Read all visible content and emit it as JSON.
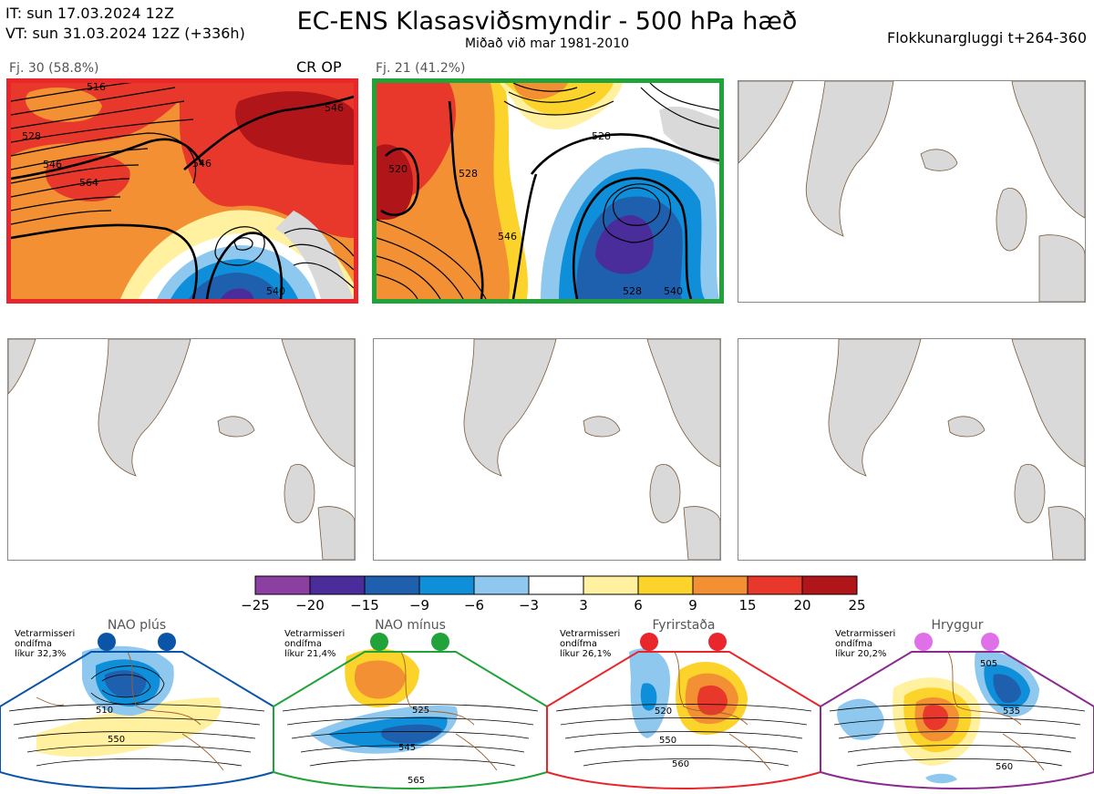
{
  "header": {
    "it_line": "IT: sun 17.03.2024 12Z",
    "vt_line": "VT: sun 31.03.2024 12Z  (+336h)",
    "title": "EC-ENS Klasasviðsmyndir - 500 hPa hæð",
    "subtitle": "Miðað við mar 1981-2010",
    "window": "Flokkunargluggi t+264-360"
  },
  "panels": [
    {
      "label": "Fj. 30 (58.8%)",
      "tag": "CR OP",
      "border_color": "#e8262b",
      "contour_labels": [
        "516",
        "528",
        "546",
        "546",
        "564",
        "546",
        "540"
      ]
    },
    {
      "label": "Fj. 21 (41.2%)",
      "tag": "",
      "border_color": "#21a33a",
      "contour_labels": [
        "528",
        "520",
        "528",
        "546",
        "540",
        "528"
      ]
    },
    {
      "label": "",
      "tag": "",
      "border_color": "#888888"
    },
    {
      "label": "",
      "tag": "",
      "border_color": "#888888"
    },
    {
      "label": "",
      "tag": "",
      "border_color": "#888888"
    },
    {
      "label": "",
      "tag": "",
      "border_color": "#888888"
    }
  ],
  "colorbar": {
    "ticks": [
      "−25",
      "−20",
      "−15",
      "−9",
      "−6",
      "−3",
      "3",
      "6",
      "9",
      "15",
      "20",
      "25"
    ],
    "colors": [
      "#8b3fa0",
      "#4a2c9b",
      "#1e5fae",
      "#0f8fd9",
      "#8fc8ee",
      "#ffffff",
      "#fff1a0",
      "#fcd32a",
      "#f39033",
      "#e8382b",
      "#b0151a"
    ]
  },
  "regimes": [
    {
      "title": "NAO plús",
      "note": [
        "Vetrarmisseri",
        "ondífma",
        "líkur 32,3%"
      ],
      "color": "#0a55a8",
      "dot_color": "#0a55a8",
      "contours": [
        "510",
        "550"
      ]
    },
    {
      "title": "NAO mínus",
      "note": [
        "Vetrarmisseri",
        "ondífma",
        "líkur 21,4%"
      ],
      "color": "#21a33a",
      "dot_color": "#21a33a",
      "contours": [
        "525",
        "545",
        "565"
      ]
    },
    {
      "title": "Fyrirstaða",
      "note": [
        "Vetrarmisseri",
        "ondífma",
        "líkur 26,1%"
      ],
      "color": "#e8262b",
      "dot_color": "#e8262b",
      "contours": [
        "520",
        "550",
        "560"
      ]
    },
    {
      "title": "Hryggur",
      "note": [
        "Vetrarmisseri",
        "ondífma",
        "líkur 20,2%"
      ],
      "color": "#8b2b8f",
      "dot_color": "#e070e8",
      "contours": [
        "505",
        "535",
        "560"
      ]
    }
  ]
}
